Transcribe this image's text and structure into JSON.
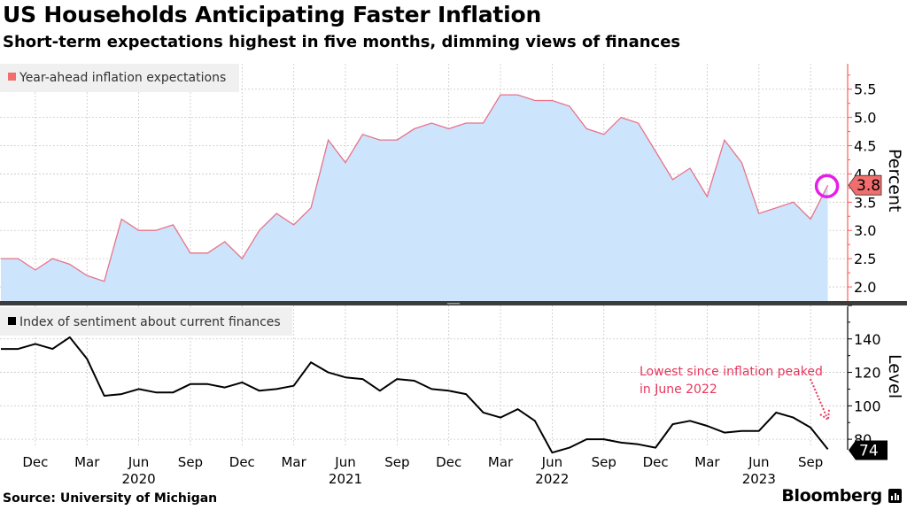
{
  "header": {
    "title": "US Households Anticipating Faster Inflation",
    "subtitle": "Short-term expectations highest in five months, dimming views of finances"
  },
  "footer": {
    "source": "Source: University of Michigan",
    "brand": "Bloomberg"
  },
  "colors": {
    "area_fill": "#cce4fc",
    "inflation_line": "#e8738a",
    "top_axis": "#ff5a5a",
    "sentiment_line": "#000000",
    "annotation": "#e8365d",
    "highlight_circle": "#e81ee8",
    "grid": "#c8c8c8"
  },
  "chart_data": [
    {
      "type": "area",
      "panel": "top",
      "legend": "Year-ahead inflation expectations",
      "legend_placement": "top-left",
      "ylabel": "Percent",
      "ylim": [
        1.75,
        5.95
      ],
      "yticks": [
        "2.0",
        "2.5",
        "3.0",
        "3.5",
        "4.0",
        "4.5",
        "5.0",
        "5.5"
      ],
      "grid": true,
      "last_value_label": "3.8",
      "x": [
        "2019-10",
        "2019-11",
        "2019-12",
        "2020-01",
        "2020-02",
        "2020-03",
        "2020-04",
        "2020-05",
        "2020-06",
        "2020-07",
        "2020-08",
        "2020-09",
        "2020-10",
        "2020-11",
        "2020-12",
        "2021-01",
        "2021-02",
        "2021-03",
        "2021-04",
        "2021-05",
        "2021-06",
        "2021-07",
        "2021-08",
        "2021-09",
        "2021-10",
        "2021-11",
        "2021-12",
        "2022-01",
        "2022-02",
        "2022-03",
        "2022-04",
        "2022-05",
        "2022-06",
        "2022-07",
        "2022-08",
        "2022-09",
        "2022-10",
        "2022-11",
        "2022-12",
        "2023-01",
        "2023-02",
        "2023-03",
        "2023-04",
        "2023-05",
        "2023-06",
        "2023-07",
        "2023-08",
        "2023-09",
        "2023-10"
      ],
      "values": [
        2.5,
        2.5,
        2.3,
        2.5,
        2.4,
        2.2,
        2.1,
        3.2,
        3.0,
        3.0,
        3.1,
        2.6,
        2.6,
        2.8,
        2.5,
        3.0,
        3.3,
        3.1,
        3.4,
        4.6,
        4.2,
        4.7,
        4.6,
        4.6,
        4.8,
        4.9,
        4.8,
        4.9,
        4.9,
        5.4,
        5.4,
        5.3,
        5.3,
        5.2,
        4.8,
        4.7,
        5.0,
        4.9,
        4.4,
        3.9,
        4.1,
        3.6,
        4.6,
        4.2,
        3.3,
        3.4,
        3.5,
        3.2,
        3.8
      ]
    },
    {
      "type": "line",
      "panel": "bottom",
      "legend": "Index of sentiment about current finances",
      "legend_placement": "top-left",
      "ylabel": "Level",
      "ylim": [
        70,
        160
      ],
      "yticks": [
        "80",
        "100",
        "120",
        "140"
      ],
      "grid": true,
      "last_value_label": "74",
      "annotation": {
        "lines": [
          "Lowest since inflation peaked",
          "in June 2022"
        ]
      },
      "x": [
        "2019-10",
        "2019-11",
        "2019-12",
        "2020-01",
        "2020-02",
        "2020-03",
        "2020-04",
        "2020-05",
        "2020-06",
        "2020-07",
        "2020-08",
        "2020-09",
        "2020-10",
        "2020-11",
        "2020-12",
        "2021-01",
        "2021-02",
        "2021-03",
        "2021-04",
        "2021-05",
        "2021-06",
        "2021-07",
        "2021-08",
        "2021-09",
        "2021-10",
        "2021-11",
        "2021-12",
        "2022-01",
        "2022-02",
        "2022-03",
        "2022-04",
        "2022-05",
        "2022-06",
        "2022-07",
        "2022-08",
        "2022-09",
        "2022-10",
        "2022-11",
        "2022-12",
        "2023-01",
        "2023-02",
        "2023-03",
        "2023-04",
        "2023-05",
        "2023-06",
        "2023-07",
        "2023-08",
        "2023-09",
        "2023-10"
      ],
      "values": [
        134,
        134,
        137,
        134,
        141,
        128,
        106,
        107,
        110,
        108,
        108,
        113,
        113,
        111,
        114,
        109,
        110,
        112,
        126,
        120,
        117,
        116,
        109,
        116,
        115,
        110,
        109,
        107,
        96,
        93,
        98,
        91,
        72,
        75,
        80,
        80,
        78,
        77,
        75,
        89,
        91,
        88,
        84,
        85,
        85,
        96,
        93,
        87,
        74
      ]
    }
  ],
  "x_axis": {
    "month_ticks": [
      "Dec",
      "Mar",
      "Jun",
      "Sep",
      "Dec",
      "Mar",
      "Jun",
      "Sep",
      "Dec",
      "Mar",
      "Jun",
      "Sep",
      "Dec",
      "Mar",
      "Jun",
      "Sep"
    ],
    "year_labels": [
      "2020",
      "2021",
      "2022",
      "2023"
    ]
  }
}
